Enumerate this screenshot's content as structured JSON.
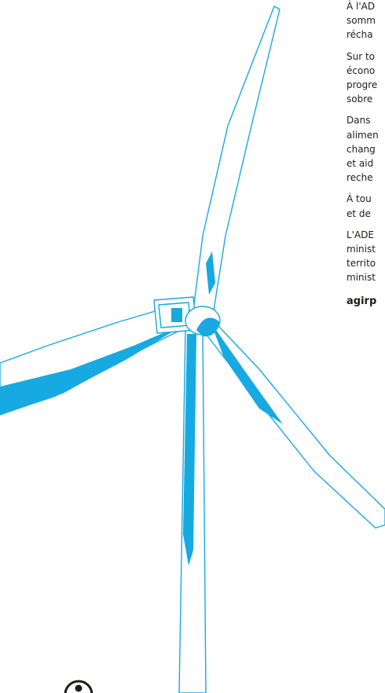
{
  "paragraphs": [
    {
      "lines": [
        "À l'AD",
        "somm",
        "récha"
      ]
    },
    {
      "lines": [
        "Sur to",
        "écono",
        "progre",
        "sobre"
      ]
    },
    {
      "lines": [
        "Dans",
        "alimen",
        "chang",
        "et aid",
        "reche"
      ]
    },
    {
      "lines": [
        "À tou",
        "et de"
      ]
    },
    {
      "lines": [
        "L'ADE",
        "minist",
        "territo",
        "minist"
      ]
    }
  ],
  "link": "agirp"
}
